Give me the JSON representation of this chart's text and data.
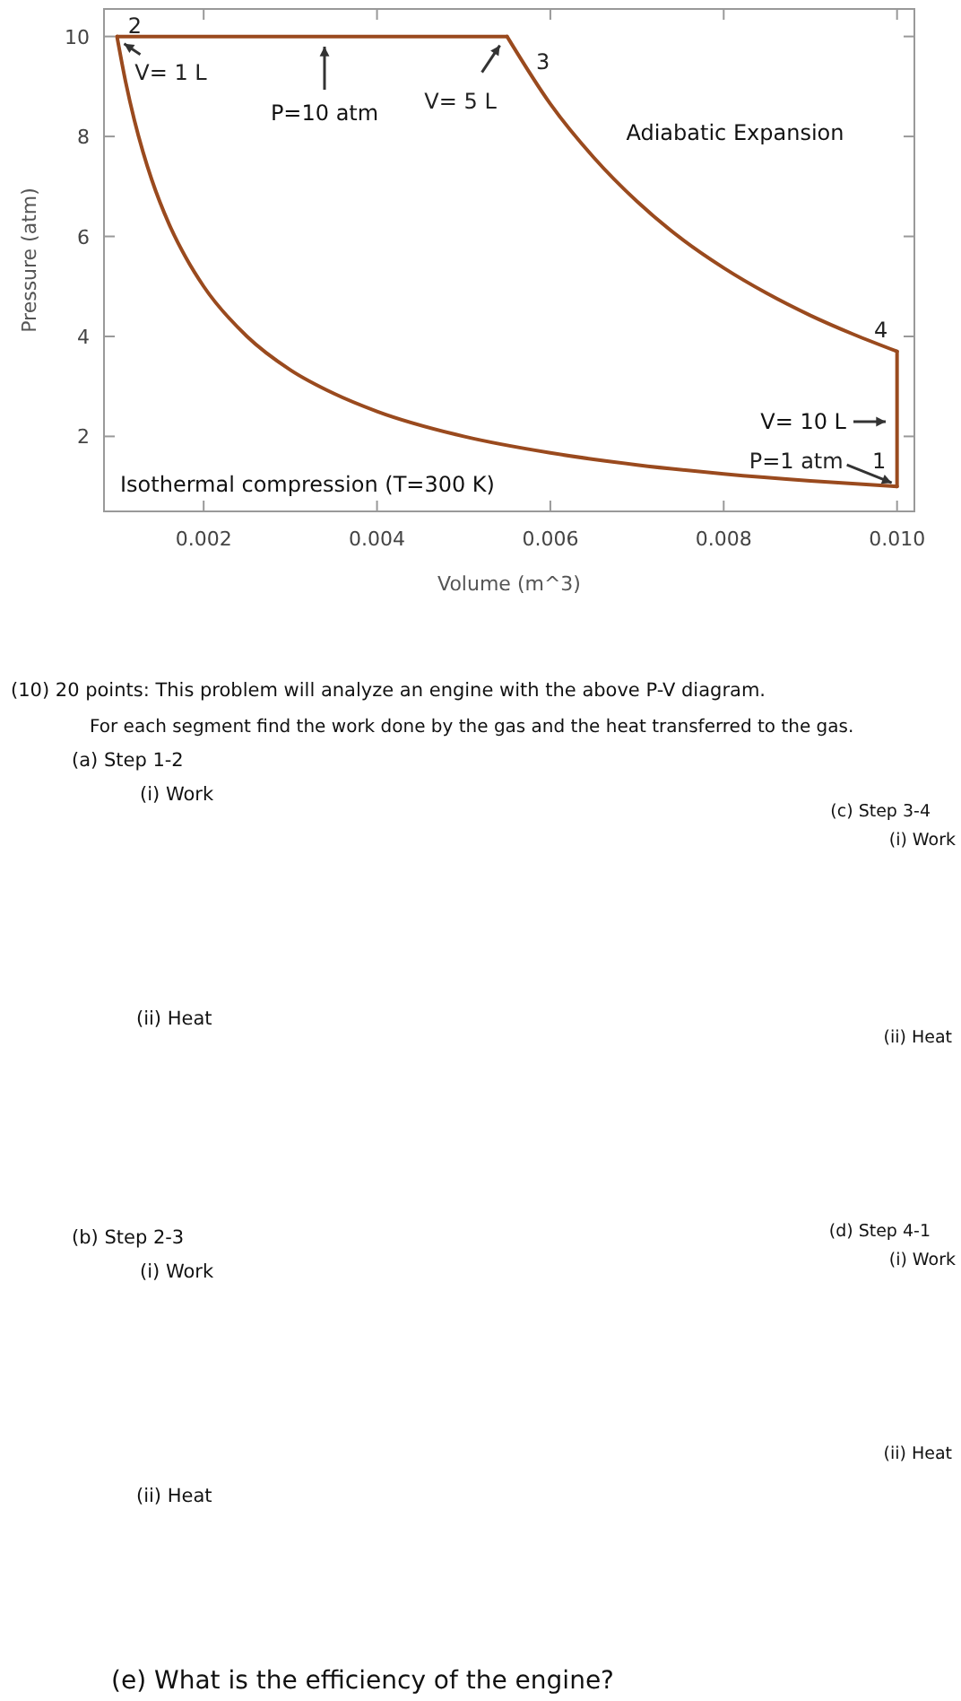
{
  "chart_data": {
    "type": "line",
    "xlabel": "Volume (m^3)",
    "ylabel": "Pressure (atm)",
    "xlim": [
      0.00085,
      0.0102
    ],
    "ylim": [
      0.5,
      10.55
    ],
    "xticks": [
      0.002,
      0.004,
      0.006,
      0.008,
      {
        "value": 0.01,
        "label": "0.010"
      }
    ],
    "yticks": [
      2,
      4,
      6,
      8,
      10
    ],
    "grid": false,
    "marker": "none",
    "line_style": "solid",
    "series": [
      {
        "color": "#9a4a1e",
        "x": [
          0.001,
          0.0011,
          0.0012,
          0.0013,
          0.0014,
          0.0016,
          0.0018,
          0.002,
          0.0025,
          0.003,
          0.0035,
          0.004,
          0.005,
          0.006,
          0.007,
          0.008,
          0.009,
          0.01
        ],
        "values": [
          10,
          9.09,
          8.33,
          7.69,
          7.14,
          6.25,
          5.56,
          5,
          4,
          3.33,
          2.86,
          2.5,
          2,
          1.67,
          1.43,
          1.25,
          1.11,
          1
        ]
      },
      {
        "color": "#9a4a1e",
        "x": [
          0.001,
          0.0055
        ],
        "values": [
          10,
          10
        ]
      },
      {
        "color": "#9a4a1e",
        "x": [
          0.0055,
          0.006,
          0.0065,
          0.007,
          0.0075,
          0.008,
          0.0085,
          0.009,
          0.0095,
          0.01
        ],
        "values": [
          10,
          8.65,
          7.58,
          6.7,
          5.97,
          5.37,
          4.86,
          4.42,
          4.04,
          3.7
        ]
      },
      {
        "color": "#9a4a1e",
        "x": [
          0.01,
          0.01
        ],
        "values": [
          3.7,
          1
        ]
      }
    ],
    "annotations": [
      {
        "text": "2",
        "x": 0.001,
        "y": 10
      },
      {
        "text": "3",
        "x": 0.0055,
        "y": 10
      },
      {
        "text": "4",
        "x": 0.01,
        "y": 3.7
      },
      {
        "text": "1",
        "x": 0.01,
        "y": 1
      },
      {
        "text": "V= 1 L",
        "x": 0.001,
        "y": 10
      },
      {
        "text": "V= 5 L",
        "x": 0.0055,
        "y": 10
      },
      {
        "text": "P=1 atm",
        "x": 0.01,
        "y": 1
      },
      "P=10 atm",
      "V= 10 L",
      "Adiabatic Expansion",
      "Isothermal compression (T=300 K)",
      "(10) 20 points: This problem will analyze an engine with the above P-V diagram.",
      "For each segment find the work done by the gas and the heat transferred to the gas.",
      "(a) Step 1-2",
      "(i) Work",
      "(ii) Heat",
      "(c) Step 3-4",
      "(i) Work",
      "(ii) Heat",
      "(b) Step 2-3",
      "(i) Work",
      "(ii) Heat",
      "(d) Step 4-1",
      "(i) Work",
      "(ii) Heat",
      "(e) What is the efficiency of the engine?"
    ]
  }
}
